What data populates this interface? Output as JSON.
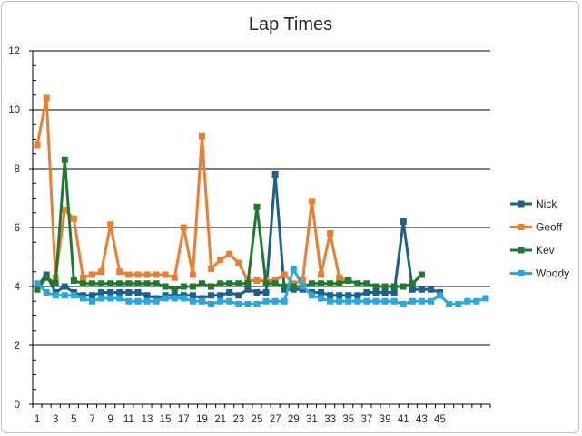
{
  "chart_data": {
    "type": "line",
    "title": "Lap Times",
    "xlabel": "",
    "ylabel": "",
    "ylim": [
      0,
      12
    ],
    "yticks": [
      0,
      2,
      4,
      6,
      8,
      10,
      12
    ],
    "x_points": 50,
    "xtick_labels": [
      "1",
      "3",
      "5",
      "7",
      "9",
      "11",
      "13",
      "15",
      "17",
      "19",
      "21",
      "23",
      "25",
      "27",
      "29",
      "31",
      "33",
      "35",
      "37",
      "39",
      "41",
      "43",
      "45"
    ],
    "grid": "horizontal",
    "legend_position": "right",
    "series": [
      {
        "name": "Nick",
        "color": "#1f5f8b",
        "values": [
          4.0,
          4.4,
          3.8,
          4.0,
          3.8,
          3.7,
          3.7,
          3.8,
          3.8,
          3.8,
          3.8,
          3.8,
          3.7,
          3.6,
          3.7,
          3.7,
          3.7,
          3.7,
          3.6,
          3.7,
          3.7,
          3.8,
          3.7,
          3.9,
          3.8,
          3.8,
          7.8,
          3.9,
          3.9,
          3.9,
          3.8,
          3.8,
          3.7,
          3.7,
          3.7,
          3.7,
          3.8,
          3.8,
          3.8,
          3.8,
          6.2,
          3.9,
          3.9,
          3.9,
          3.8
        ]
      },
      {
        "name": "Geoff",
        "color": "#ed7d31",
        "values": [
          8.8,
          10.4,
          4.3,
          6.6,
          6.3,
          4.3,
          4.4,
          4.5,
          6.1,
          4.5,
          4.4,
          4.4,
          4.4,
          4.4,
          4.4,
          4.3,
          6.0,
          4.4,
          9.1,
          4.6,
          4.9,
          5.1,
          4.8,
          4.2,
          4.2,
          4.2,
          4.2,
          4.4,
          4.1,
          4.2,
          6.9,
          4.4,
          5.8,
          4.3,
          4.2
        ]
      },
      {
        "name": "Kev",
        "color": "#1e7a2e",
        "values": [
          3.9,
          4.3,
          4.1,
          8.3,
          4.2,
          4.1,
          4.1,
          4.1,
          4.1,
          4.1,
          4.1,
          4.1,
          4.1,
          4.1,
          4.0,
          3.9,
          4.0,
          4.0,
          4.1,
          4.0,
          4.1,
          4.1,
          4.1,
          4.1,
          6.7,
          4.1,
          4.1,
          4.0,
          4.0,
          4.0,
          4.1,
          4.1,
          4.1,
          4.1,
          4.2,
          4.1,
          4.1,
          4.0,
          4.0,
          4.0,
          4.0,
          4.1,
          4.4
        ]
      },
      {
        "name": "Woody",
        "color": "#29a8e0",
        "values": [
          4.1,
          3.8,
          3.7,
          3.7,
          3.7,
          3.6,
          3.5,
          3.6,
          3.6,
          3.6,
          3.5,
          3.5,
          3.5,
          3.5,
          3.6,
          3.6,
          3.6,
          3.5,
          3.5,
          3.4,
          3.5,
          3.5,
          3.4,
          3.4,
          3.4,
          3.5,
          3.5,
          3.5,
          4.6,
          4.0,
          3.7,
          3.6,
          3.5,
          3.5,
          3.5,
          3.5,
          3.5,
          3.5,
          3.5,
          3.5,
          3.4,
          3.5,
          3.5,
          3.5,
          3.7,
          3.4,
          3.4,
          3.5,
          3.5,
          3.6
        ]
      }
    ]
  }
}
